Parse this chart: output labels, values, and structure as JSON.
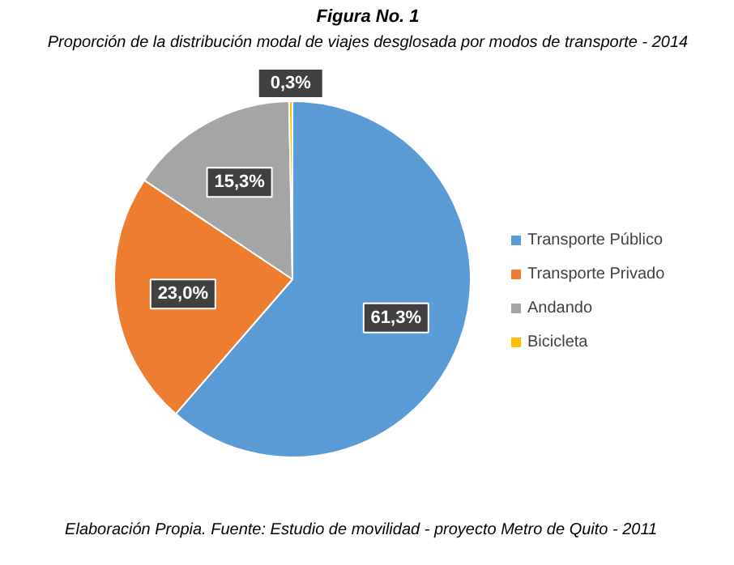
{
  "chart_data": {
    "type": "pie",
    "title": "Figura No. 1",
    "subtitle": "Proporción de la distribución modal de viajes desglosada por modos de transporte - 2014",
    "categories": [
      "Transporte Público",
      "Transporte Privado",
      "Andando",
      "Bicicleta"
    ],
    "values": [
      61.3,
      23.0,
      15.3,
      0.3
    ],
    "colors": [
      "#5b9bd5",
      "#ed7d31",
      "#a5a5a5",
      "#ffc000"
    ],
    "value_labels": [
      "61,3%",
      "23,0%",
      "15,3%",
      "0,3%"
    ],
    "legend": "right",
    "annotations": [
      "Elaboración Propia.    Fuente: Estudio de movilidad - proyecto Metro de Quito - 2011"
    ]
  }
}
